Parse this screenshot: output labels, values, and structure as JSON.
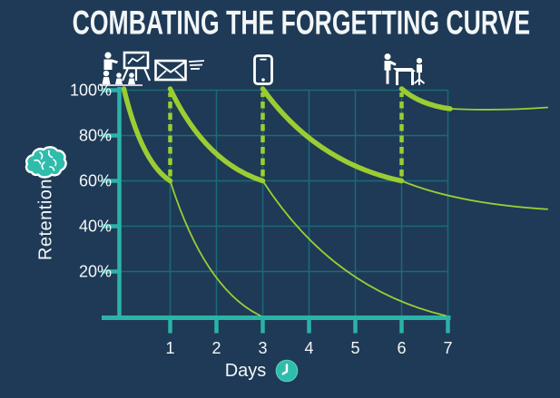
{
  "title": "COMBATING THE FORGETTING CURVE",
  "colors": {
    "background": "#1e3a56",
    "axis_teal": "#2ab3a7",
    "grid_teal": "#1c6977",
    "curve_green": "#9bcd33",
    "icon_teal": "#30bcab",
    "text": "#f4f7f9"
  },
  "chart_data": {
    "type": "line",
    "title": "COMBATING THE FORGETTING CURVE",
    "xlabel": "Days",
    "ylabel": "Retention",
    "xlim": [
      0,
      9.3
    ],
    "ylim": [
      0,
      100
    ],
    "grid": true,
    "x_ticks": [
      1,
      2,
      3,
      4,
      5,
      6,
      7
    ],
    "y_ticks": [
      {
        "value": 100,
        "label": "100%"
      },
      {
        "value": 80,
        "label": "80%"
      },
      {
        "value": 60,
        "label": "60%"
      },
      {
        "value": 40,
        "label": "40%"
      },
      {
        "value": 20,
        "label": "20%"
      }
    ],
    "series": [
      {
        "name": "retention-with-review",
        "style": "thick",
        "segments": [
          {
            "from": [
              0,
              100.6
            ],
            "to": [
              1,
              60
            ],
            "shape": "decay"
          },
          {
            "from": [
              1,
              100.6
            ],
            "to": [
              3,
              60
            ],
            "shape": "decay"
          },
          {
            "from": [
              3,
              100.6
            ],
            "to": [
              6,
              60
            ],
            "shape": "decay"
          },
          {
            "from": [
              6,
              100.6
            ],
            "to": [
              7.05,
              91.8
            ],
            "shape": "decay"
          }
        ]
      },
      {
        "name": "forgetting-curve-continuation",
        "style": "thin",
        "segments": [
          {
            "from": [
              1,
              60
            ],
            "to": [
              2.95,
              0.5
            ],
            "shape": "decay"
          },
          {
            "from": [
              3,
              60
            ],
            "to": [
              6.95,
              0.5
            ],
            "shape": "decay"
          },
          {
            "from": [
              6,
              60
            ],
            "to": [
              9.15,
              47.5
            ],
            "shape": "decay"
          },
          {
            "from": [
              7.05,
              91.8
            ],
            "to": [
              9.15,
              92.4
            ],
            "shape": "sag",
            "dip": 90.8
          }
        ]
      },
      {
        "name": "review-boost",
        "style": "dashed",
        "segments": [
          {
            "from": [
              1,
              62
            ],
            "to": [
              1,
              99
            ],
            "shape": "line"
          },
          {
            "from": [
              3,
              62
            ],
            "to": [
              3,
              99
            ],
            "shape": "line"
          },
          {
            "from": [
              6,
              62
            ],
            "to": [
              6,
              99
            ],
            "shape": "line"
          }
        ]
      }
    ],
    "interventions": [
      {
        "day": 0,
        "icon": "presentation-icon"
      },
      {
        "day": 1,
        "icon": "email-icon"
      },
      {
        "day": 3,
        "icon": "smartphone-icon"
      },
      {
        "day": 6,
        "icon": "meeting-icon"
      }
    ]
  }
}
